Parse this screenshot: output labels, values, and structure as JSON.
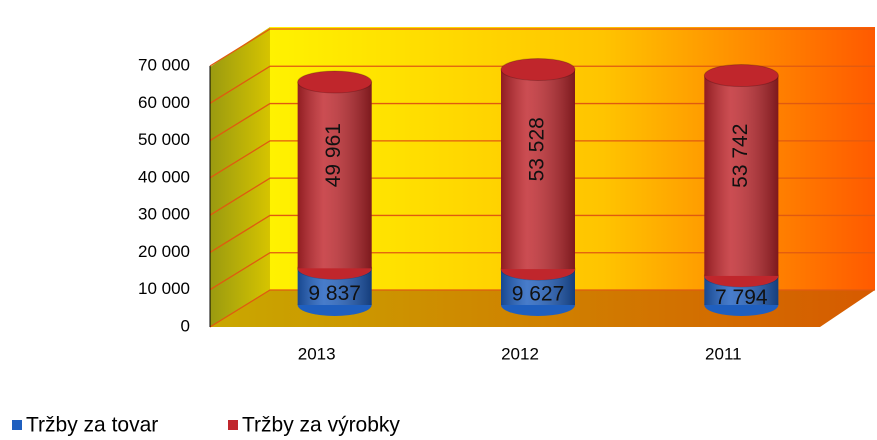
{
  "chart_data": {
    "type": "stacked-cylinder",
    "categories": [
      "2013",
      "2012",
      "2011"
    ],
    "series": [
      {
        "name": "Tržby za tovar",
        "color": "#1f5fbf",
        "values": [
          9837,
          9627,
          7794
        ],
        "value_labels": [
          "9 837",
          "9 627",
          "7 794"
        ]
      },
      {
        "name": "Tržby za výrobky",
        "color": "#c0262c",
        "values": [
          49961,
          53528,
          53742
        ],
        "value_labels": [
          "49 961",
          "53 528",
          "53 742"
        ]
      }
    ],
    "ylim": [
      0,
      70000
    ],
    "yticks": [
      {
        "value": 0,
        "label": "0"
      },
      {
        "value": 10000,
        "label": "10 000"
      },
      {
        "value": 20000,
        "label": "20 000"
      },
      {
        "value": 30000,
        "label": "30 000"
      },
      {
        "value": 40000,
        "label": "40 000"
      },
      {
        "value": 50000,
        "label": "50 000"
      },
      {
        "value": 60000,
        "label": "60 000"
      },
      {
        "value": 70000,
        "label": "70 000"
      }
    ],
    "grid": true,
    "legend": "bottom-left"
  }
}
